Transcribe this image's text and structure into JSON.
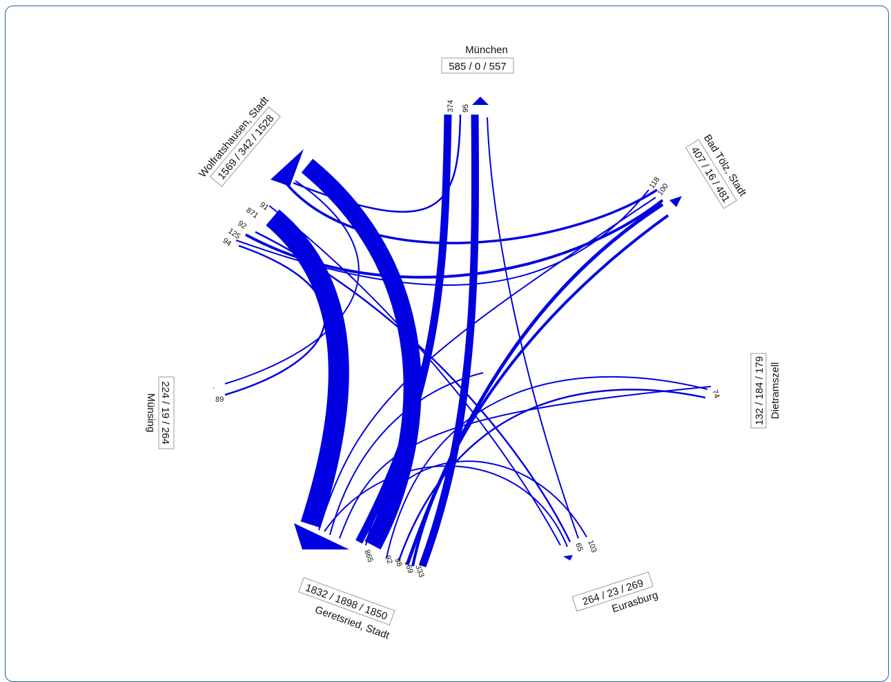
{
  "colors": {
    "flow": "#0000e0",
    "frame": "#1f5fa8"
  },
  "nodes": [
    {
      "id": "muenchen",
      "name": "München",
      "stats": "585 / 0 / 557"
    },
    {
      "id": "badtoelz",
      "name": "Bad Tölz, Stadt",
      "stats": "407 / 16 / 481"
    },
    {
      "id": "dietramszell",
      "name": "Dietramszell",
      "stats": "132 / 184 / 179"
    },
    {
      "id": "eurasburg",
      "name": "Eurasburg",
      "stats": "264 / 23 / 269"
    },
    {
      "id": "geretsried",
      "name": "Geretsried, Stadt",
      "stats": "1832 / 1898 / 1850"
    },
    {
      "id": "muensing",
      "name": "Münsing",
      "stats": "224 / 19 / 264"
    },
    {
      "id": "wolfratshausen",
      "name": "Wolfratshausen, Stadt",
      "stats": "1569 / 342 / 1528"
    }
  ],
  "flow_values": {
    "muenchen": [
      "374",
      "95"
    ],
    "badtoelz": [
      "118",
      "100"
    ],
    "dietramszell": [
      "74",
      "."
    ],
    "eurasburg": [
      "65",
      "103"
    ],
    "geretsried": [
      "865",
      "92",
      "98",
      "169",
      "333"
    ],
    "muensing": [
      ".",
      "89"
    ],
    "wolfratshausen": [
      "91",
      "871",
      "92",
      "125",
      "94"
    ]
  }
}
